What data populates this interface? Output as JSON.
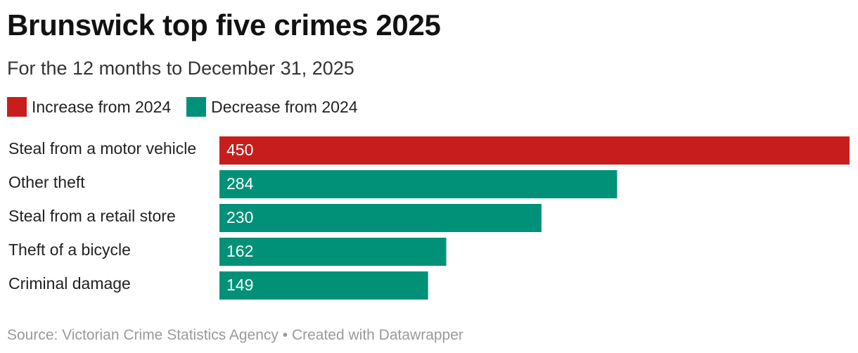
{
  "chart_data": {
    "type": "bar",
    "orientation": "horizontal",
    "title": "Brunswick top five crimes 2025",
    "subtitle": "For the 12 months to December 31, 2025",
    "categories": [
      "Steal from a motor vehicle",
      "Other theft",
      "Steal from a retail store",
      "Theft of a bicycle",
      "Criminal damage"
    ],
    "values": [
      450,
      284,
      230,
      162,
      149
    ],
    "status": [
      "increase",
      "decrease",
      "decrease",
      "decrease",
      "decrease"
    ],
    "legend": [
      {
        "key": "increase",
        "label": "Increase from 2024",
        "color": "#c71e1d"
      },
      {
        "key": "decrease",
        "label": "Decrease from 2024",
        "color": "#009178"
      }
    ],
    "xlim": [
      0,
      450
    ],
    "grid": false,
    "legend_position": "top-left",
    "source": "Source: Victorian Crime Statistics Agency • Created with Datawrapper"
  }
}
